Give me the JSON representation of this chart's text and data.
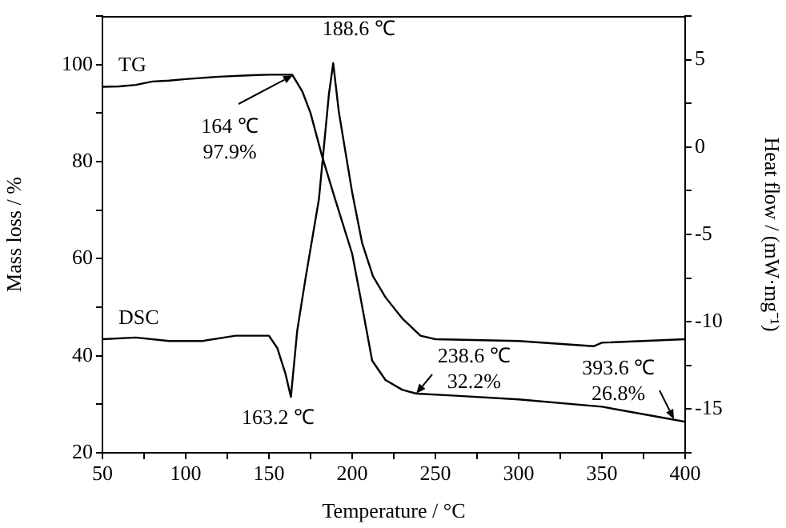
{
  "chart_data": {
    "type": "line",
    "xlabel": "Temperature / °C",
    "ylabel": "Mass loss / %",
    "y2label": "Heat flow / (mW·mg⁻¹)",
    "xlim": [
      50,
      400
    ],
    "xticks": [
      50,
      {
        "value": 75,
        "label": null
      },
      100,
      {
        "value": 125,
        "label": null
      },
      150,
      {
        "value": 175,
        "label": null
      },
      200,
      {
        "value": 225,
        "label": null
      },
      250,
      {
        "value": 275,
        "label": null
      },
      300,
      {
        "value": 325,
        "label": null
      },
      350,
      {
        "value": 375,
        "label": null
      },
      400
    ],
    "ylim": [
      20,
      110
    ],
    "yticks": [
      20,
      {
        "value": 30,
        "label": null
      },
      40,
      {
        "value": 50,
        "label": null
      },
      60,
      {
        "value": 70,
        "label": null
      },
      80,
      {
        "value": 90,
        "label": null
      },
      100,
      {
        "value": 110,
        "label": null
      }
    ],
    "y2lim": [
      -17.5,
      7.5
    ],
    "y2ticks": [
      {
        "value": -17.5,
        "label": null
      },
      -15,
      {
        "value": -12.5,
        "label": null
      },
      -10,
      {
        "value": -7.5,
        "label": null
      },
      -5,
      {
        "value": -2.5,
        "label": null
      },
      0,
      {
        "value": 2.5,
        "label": null
      },
      5,
      {
        "value": 7.5,
        "label": null
      }
    ],
    "series": [
      {
        "name": "TG",
        "color": "#000000",
        "x": [
          50,
          60,
          70,
          80,
          90,
          100,
          120,
          140,
          150,
          160,
          164,
          170,
          175,
          182,
          190,
          200,
          205,
          212,
          220,
          230,
          238.6,
          260,
          300,
          350,
          393.6,
          400
        ],
        "values": [
          95.4,
          95.5,
          95.8,
          96.5,
          96.7,
          97,
          97.5,
          97.8,
          97.9,
          97.9,
          97.9,
          94.5,
          90,
          81,
          72,
          61,
          52,
          39,
          35,
          33,
          32.2,
          31.8,
          31,
          29.5,
          26.8,
          26.4
        ]
      },
      {
        "name": "DSC",
        "color": "#000000",
        "axis": "y2",
        "x": [
          50,
          70,
          90,
          110,
          130,
          150,
          155,
          160,
          163.2,
          167,
          172,
          180,
          186,
          188.6,
          192,
          200,
          206,
          212.5,
          220,
          230,
          241,
          250,
          300,
          345,
          350,
          400
        ],
        "values": [
          -11,
          -10.9,
          -11.1,
          -11.1,
          -10.8,
          -10.8,
          -11.5,
          -13,
          -14.3,
          -10.5,
          -7.5,
          -3,
          3,
          4.8,
          2,
          -2.6,
          -5.5,
          -7.4,
          -8.6,
          -9.8,
          -10.8,
          -11,
          -11.1,
          -11.4,
          -11.2,
          -11
        ]
      }
    ],
    "annotations": [
      {
        "text": "188.6 ℃",
        "x": 188.6,
        "y": 99.3
      },
      {
        "text": "164 ℃\n97.9%",
        "x": 164,
        "y": 97.9
      },
      {
        "text": "163.2 ℃",
        "x": 163.2,
        "y": 31.6
      },
      {
        "text": "238.6 ℃\n32.2%",
        "x": 238.6,
        "y": 32.2
      },
      {
        "text": "393.6 ℃\n26.8%",
        "x": 393.6,
        "y": 26.8
      }
    ],
    "grid": false,
    "legend": false,
    "marker": "none",
    "line_style": "solid"
  }
}
